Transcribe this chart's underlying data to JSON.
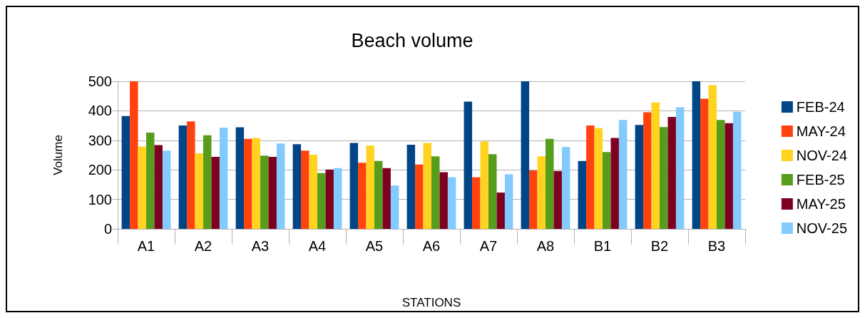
{
  "chart_data": {
    "type": "bar",
    "title": "Beach volume",
    "xlabel": "STATIONS",
    "ylabel": "Volume",
    "categories": [
      "A1",
      "A2",
      "A3",
      "A4",
      "A5",
      "A6",
      "A7",
      "A8",
      "B1",
      "B2",
      "B3"
    ],
    "series": [
      {
        "name": "FEB-24",
        "color": "#004586",
        "values": [
          382,
          350,
          344,
          287,
          291,
          285,
          431,
          500,
          230,
          352,
          500
        ]
      },
      {
        "name": "MAY-24",
        "color": "#ff420e",
        "values": [
          500,
          364,
          305,
          265,
          224,
          218,
          175,
          198,
          350,
          395,
          441
        ]
      },
      {
        "name": "NOV-24",
        "color": "#ffd320",
        "values": [
          279,
          256,
          308,
          251,
          282,
          291,
          296,
          246,
          341,
          428,
          487
        ]
      },
      {
        "name": "FEB-25",
        "color": "#579d1c",
        "values": [
          326,
          317,
          248,
          189,
          230,
          246,
          253,
          305,
          260,
          345,
          369
        ]
      },
      {
        "name": "MAY-25",
        "color": "#7e0021",
        "values": [
          284,
          244,
          244,
          201,
          206,
          192,
          123,
          196,
          308,
          379,
          358
        ]
      },
      {
        "name": "NOV-25",
        "color": "#83caff",
        "values": [
          265,
          343,
          289,
          206,
          147,
          175,
          185,
          277,
          369,
          412,
          397
        ]
      }
    ],
    "ylim": [
      0,
      500
    ],
    "yticks": [
      0,
      100,
      200,
      300,
      400,
      500
    ],
    "grid": "y",
    "legend": "right"
  }
}
